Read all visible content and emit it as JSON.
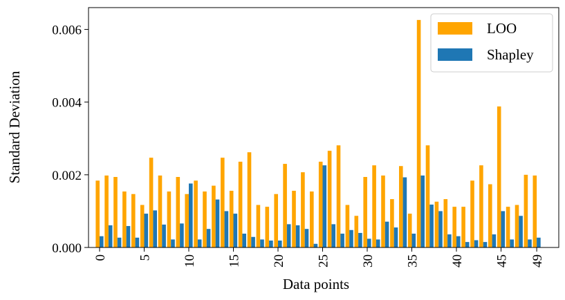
{
  "chart_data": {
    "type": "bar",
    "xlabel": "Data points",
    "ylabel": "Standard Deviation",
    "ylim": [
      0,
      0.0066
    ],
    "yticks": [
      "0.000",
      "0.002",
      "0.004",
      "0.006"
    ],
    "ytick_values": [
      0,
      0.002,
      0.004,
      0.006
    ],
    "xticks": [
      "0",
      "5",
      "10",
      "15",
      "20",
      "25",
      "30",
      "35",
      "40",
      "45",
      "49"
    ],
    "xtick_values": [
      0,
      5,
      10,
      15,
      20,
      25,
      30,
      35,
      40,
      45,
      49
    ],
    "legend_position": "top-right",
    "categories": [
      0,
      1,
      2,
      3,
      4,
      5,
      6,
      7,
      8,
      9,
      10,
      11,
      12,
      13,
      14,
      15,
      16,
      17,
      18,
      19,
      20,
      21,
      22,
      23,
      24,
      25,
      26,
      27,
      28,
      29,
      30,
      31,
      32,
      33,
      34,
      35,
      36,
      37,
      38,
      39,
      40,
      41,
      42,
      43,
      44,
      45,
      46,
      47,
      48,
      49
    ],
    "series": [
      {
        "name": "LOO",
        "color": "#FFA500",
        "values": [
          0.00184,
          0.00198,
          0.00194,
          0.00154,
          0.00147,
          0.00117,
          0.00247,
          0.00198,
          0.00154,
          0.00194,
          0.00147,
          0.00184,
          0.00154,
          0.0017,
          0.00247,
          0.00156,
          0.00236,
          0.00262,
          0.00117,
          0.00112,
          0.00147,
          0.0023,
          0.00156,
          0.00207,
          0.00154,
          0.00236,
          0.00266,
          0.00281,
          0.00117,
          0.00087,
          0.00194,
          0.00226,
          0.00198,
          0.00133,
          0.00224,
          0.00093,
          0.00626,
          0.00281,
          0.00126,
          0.00133,
          0.00112,
          0.00112,
          0.00184,
          0.00226,
          0.00174,
          0.00388,
          0.00112,
          0.00117,
          0.002,
          0.00198
        ]
      },
      {
        "name": "Shapley",
        "color": "#1F77B4",
        "values": [
          0.00031,
          0.00061,
          0.00027,
          0.00059,
          0.00027,
          0.00093,
          0.00102,
          0.00063,
          0.00022,
          0.00066,
          0.00176,
          0.00022,
          0.00051,
          0.00132,
          0.001,
          0.00093,
          0.00038,
          0.00029,
          0.00022,
          0.00019,
          0.00019,
          0.00064,
          0.00061,
          0.00051,
          0.0001,
          0.00226,
          0.00064,
          0.00038,
          0.00048,
          0.0004,
          0.00024,
          0.00022,
          0.00071,
          0.00055,
          0.00193,
          0.00038,
          0.00198,
          0.00118,
          0.001,
          0.00036,
          0.00031,
          0.00015,
          0.0002,
          0.00015,
          0.00036,
          0.001,
          0.00022,
          0.00087,
          0.00022,
          0.00027
        ]
      }
    ]
  }
}
